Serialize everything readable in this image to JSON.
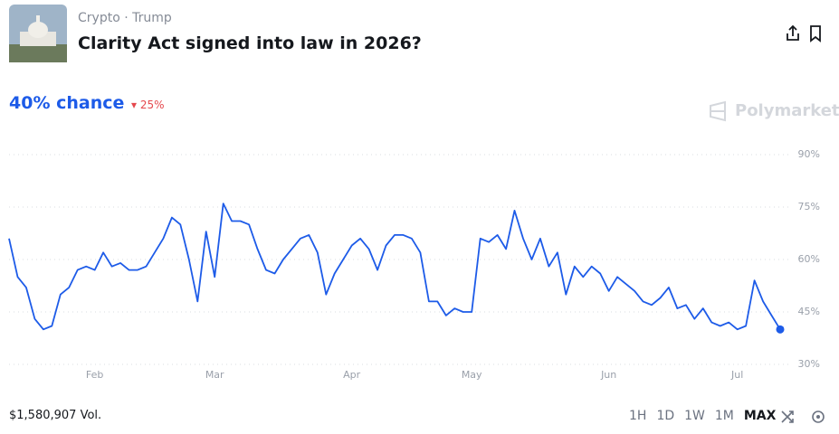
{
  "header": {
    "tags": [
      "Crypto",
      "Trump"
    ],
    "title": "Clarity Act signed into law in 2026?",
    "chance": "40% chance",
    "change": "25%",
    "brand": "Polymarket"
  },
  "footer": {
    "volume": "$1,580,907 Vol.",
    "ranges": [
      "1H",
      "1D",
      "1W",
      "1M",
      "MAX"
    ]
  },
  "chart_data": {
    "type": "line",
    "color": "#1d5be8",
    "grid": true,
    "categories": [
      null,
      null,
      null,
      null,
      null,
      null,
      null,
      null,
      null,
      null,
      "Feb",
      null,
      null,
      null,
      null,
      null,
      null,
      null,
      null,
      null,
      null,
      null,
      null,
      null,
      "Mar",
      null,
      null,
      null,
      null,
      null,
      null,
      null,
      null,
      null,
      null,
      null,
      null,
      null,
      null,
      null,
      "Apr",
      null,
      null,
      null,
      null,
      null,
      null,
      null,
      null,
      null,
      null,
      null,
      null,
      null,
      "May",
      null,
      null,
      null,
      null,
      null,
      null,
      null,
      null,
      null,
      null,
      null,
      null,
      null,
      null,
      null,
      "Jun",
      null,
      null,
      null,
      null,
      null,
      null,
      null,
      null,
      null,
      null,
      null,
      null,
      null,
      null,
      "Jul",
      null,
      null,
      null,
      null,
      null
    ],
    "values": [
      66,
      55,
      52,
      43,
      40,
      41,
      50,
      52,
      57,
      58,
      57,
      62,
      58,
      59,
      57,
      57,
      58,
      62,
      66,
      72,
      70,
      60,
      48,
      68,
      55,
      76,
      71,
      71,
      70,
      63,
      57,
      56,
      60,
      63,
      66,
      67,
      62,
      50,
      56,
      60,
      64,
      66,
      63,
      57,
      64,
      67,
      67,
      66,
      62,
      48,
      48,
      44,
      46,
      45,
      45,
      66,
      65,
      67,
      63,
      74,
      66,
      60,
      66,
      58,
      62,
      50,
      58,
      55,
      58,
      56,
      51,
      55,
      53,
      51,
      48,
      47,
      49,
      52,
      46,
      47,
      43,
      46,
      42,
      41,
      42,
      40,
      41,
      54,
      48,
      44,
      40
    ],
    "ylim": [
      30,
      90
    ],
    "yticks": [
      {
        "value": 30,
        "label": "30%"
      },
      {
        "value": 45,
        "label": "45%"
      },
      {
        "value": 60,
        "label": "60%"
      },
      {
        "value": 75,
        "label": "75%"
      },
      {
        "value": 90,
        "label": "90%"
      }
    ]
  }
}
